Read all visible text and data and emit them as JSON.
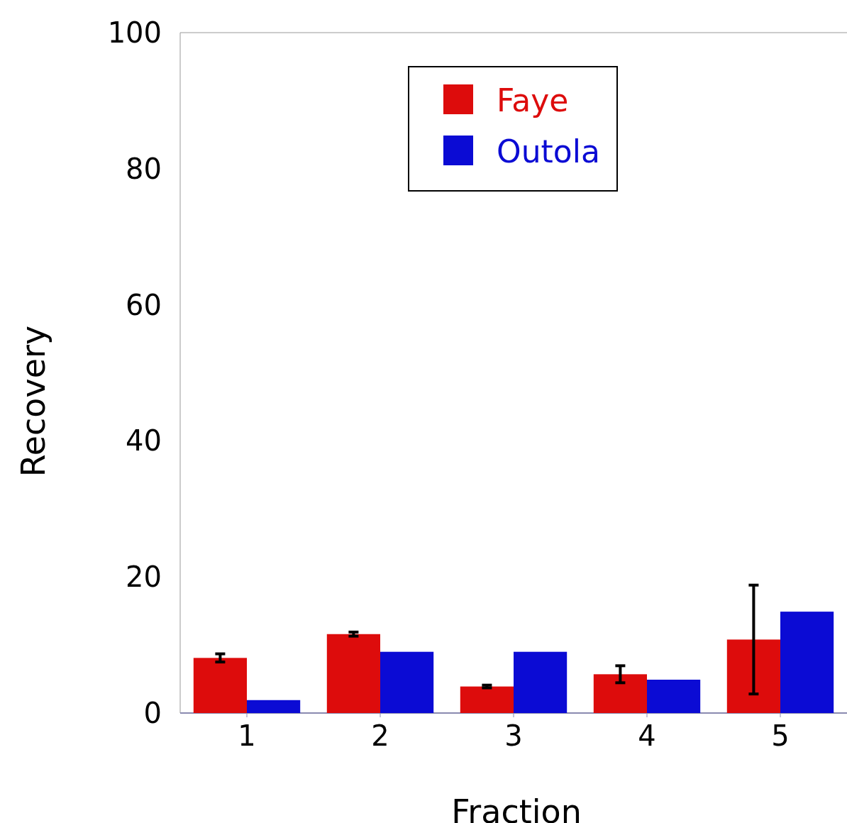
{
  "chart_data": {
    "type": "bar",
    "xlabel": "Fraction",
    "ylabel": "Recovery",
    "categories": [
      "1",
      "2",
      "3",
      "4",
      "5"
    ],
    "ylim": [
      0,
      100
    ],
    "yticks": [
      0,
      20,
      40,
      60,
      80,
      100
    ],
    "grid": false,
    "legend": "top",
    "series": [
      {
        "name": "Faye",
        "color": "#dd0c0c",
        "values": [
          8.1,
          11.6,
          3.9,
          5.7,
          10.8
        ],
        "errors": [
          0.6,
          0.3,
          0.2,
          1.25,
          8.0
        ]
      },
      {
        "name": "Outola",
        "color": "#0b0bd4",
        "values": [
          1.9,
          9.0,
          9.0,
          4.9,
          14.9
        ]
      }
    ]
  }
}
